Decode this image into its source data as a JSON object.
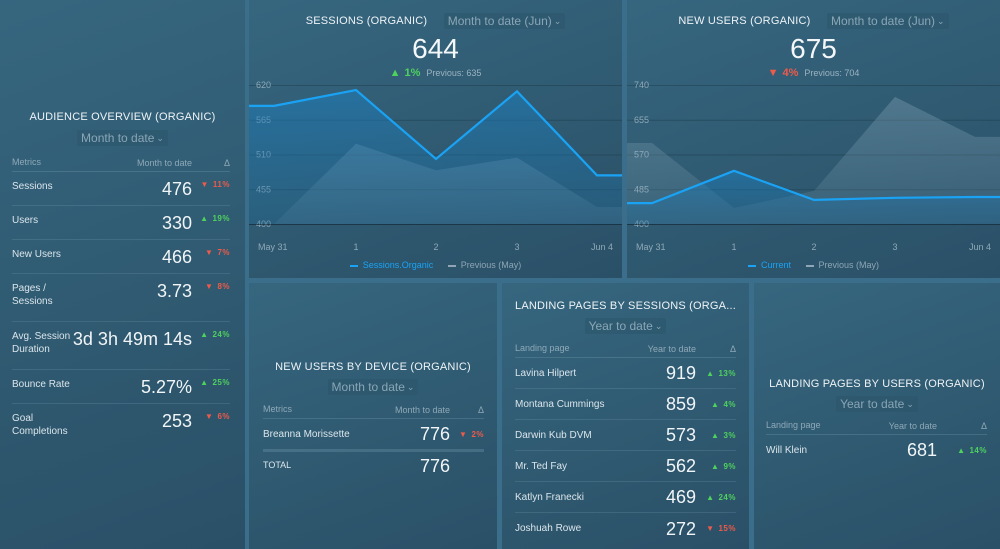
{
  "colors": {
    "accent_line": "#1aa3f5",
    "previous_fill": "#8aa9bc",
    "up": "#4fd15e",
    "down": "#ef5a4a"
  },
  "audience": {
    "title": "AUDIENCE OVERVIEW (ORGANIC)",
    "range": "Month to date",
    "headers": {
      "metric": "Metrics",
      "value": "Month to date",
      "delta": "Δ"
    },
    "rows": [
      {
        "name": "Sessions",
        "value": "476",
        "delta": "11%",
        "dir": "down"
      },
      {
        "name": "Users",
        "value": "330",
        "delta": "19%",
        "dir": "up"
      },
      {
        "name": "New Users",
        "value": "466",
        "delta": "7%",
        "dir": "down"
      },
      {
        "name": "Pages / Sessions",
        "value": "3.73",
        "delta": "8%",
        "dir": "down"
      },
      {
        "name": "Avg. Session Duration",
        "value": "3d 3h 49m 14s",
        "delta": "24%",
        "dir": "up"
      },
      {
        "name": "Bounce Rate",
        "value": "5.27%",
        "delta": "25%",
        "dir": "up"
      },
      {
        "name": "Goal Completions",
        "value": "253",
        "delta": "6%",
        "dir": "down"
      }
    ]
  },
  "sessions": {
    "title": "SESSIONS (ORGANIC)",
    "range": "Month to date (Jun)",
    "value": "644",
    "change": "1%",
    "dir": "up",
    "previous": "Previous: 635"
  },
  "newusers": {
    "title": "NEW USERS (ORGANIC)",
    "range": "Month to date (Jun)",
    "value": "675",
    "change": "4%",
    "dir": "down",
    "previous": "Previous: 704"
  },
  "device": {
    "title": "NEW USERS BY DEVICE (ORGANIC)",
    "range": "Month to date",
    "headers": {
      "metric": "Metrics",
      "value": "Month to date",
      "delta": "Δ"
    },
    "rows": [
      {
        "name": "Breanna Morissette",
        "value": "776",
        "delta": "2%",
        "dir": "down"
      }
    ],
    "total_label": "TOTAL",
    "total_value": "776"
  },
  "lp_sessions": {
    "title": "LANDING PAGES BY SESSIONS (ORGA...",
    "range": "Year to date",
    "headers": {
      "metric": "Landing page",
      "value": "Year to date",
      "delta": "Δ"
    },
    "rows": [
      {
        "name": "Lavina Hilpert",
        "value": "919",
        "delta": "13%",
        "dir": "up"
      },
      {
        "name": "Montana Cummings",
        "value": "859",
        "delta": "4%",
        "dir": "up"
      },
      {
        "name": "Darwin Kub DVM",
        "value": "573",
        "delta": "3%",
        "dir": "up"
      },
      {
        "name": "Mr. Ted Fay",
        "value": "562",
        "delta": "9%",
        "dir": "up"
      },
      {
        "name": "Katlyn Franecki",
        "value": "469",
        "delta": "24%",
        "dir": "up"
      },
      {
        "name": "Joshuah Rowe",
        "value": "272",
        "delta": "15%",
        "dir": "down"
      }
    ]
  },
  "lp_users": {
    "title": "LANDING PAGES BY USERS (ORGANIC)",
    "range": "Year to date",
    "headers": {
      "metric": "Landing page",
      "value": "Year to date",
      "delta": "Δ"
    },
    "rows": [
      {
        "name": "Will Klein",
        "value": "681",
        "delta": "14%",
        "dir": "up"
      }
    ]
  },
  "chart_data": [
    {
      "type": "area",
      "title": "SESSIONS (ORGANIC)",
      "categories": [
        "May 31",
        "1",
        "2",
        "3",
        "Jun 4"
      ],
      "yticks": [
        400,
        455,
        510,
        565,
        620
      ],
      "ylim": [
        400,
        620
      ],
      "grid": true,
      "legend_position": "bottom",
      "series": [
        {
          "name": "Sessions.Organic",
          "kind": "current",
          "values": [
            587,
            612,
            503,
            610,
            477
          ]
        },
        {
          "name": "Previous (May)",
          "kind": "previous",
          "values": [
            400,
            527,
            485,
            505,
            427
          ]
        }
      ]
    },
    {
      "type": "area",
      "title": "NEW USERS (ORGANIC)",
      "categories": [
        "May 31",
        "1",
        "2",
        "3",
        "Jun 4"
      ],
      "yticks": [
        400,
        485,
        570,
        655,
        740
      ],
      "ylim": [
        400,
        740
      ],
      "grid": true,
      "legend_position": "bottom",
      "series": [
        {
          "name": "Current",
          "kind": "current",
          "values": [
            451,
            530,
            459,
            464,
            466
          ]
        },
        {
          "name": "Previous (May)",
          "kind": "previous",
          "values": [
            598,
            439,
            481,
            711,
            613
          ]
        }
      ]
    }
  ]
}
